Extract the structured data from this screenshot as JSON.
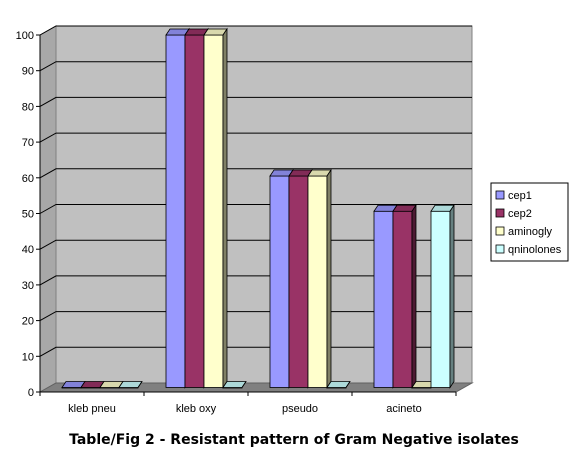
{
  "caption": "Table/Fig 2 - Resistant pattern of Gram Negative isolates",
  "chart_data": {
    "type": "bar",
    "title": "",
    "xlabel": "",
    "ylabel": "",
    "categories": [
      "kleb pneu",
      "kleb oxy",
      "pseudo",
      "acineto"
    ],
    "series": [
      {
        "name": "cep1",
        "values": [
          0,
          100,
          60,
          50
        ]
      },
      {
        "name": "cep2",
        "values": [
          0,
          100,
          60,
          50
        ]
      },
      {
        "name": "aminogly",
        "values": [
          0,
          100,
          60,
          0
        ]
      },
      {
        "name": "qninolones",
        "values": [
          0,
          0,
          0,
          50
        ]
      }
    ],
    "ylim": [
      0,
      100
    ],
    "yticks": [
      0,
      10,
      20,
      30,
      40,
      50,
      60,
      70,
      80,
      90,
      100
    ],
    "grid": true,
    "legend_position": "right",
    "colors": {
      "series": [
        "#9999ff",
        "#993366",
        "#ffffcc",
        "#ccffff"
      ],
      "plot_background": "#c0c0c0",
      "gridline": "#000000"
    }
  }
}
